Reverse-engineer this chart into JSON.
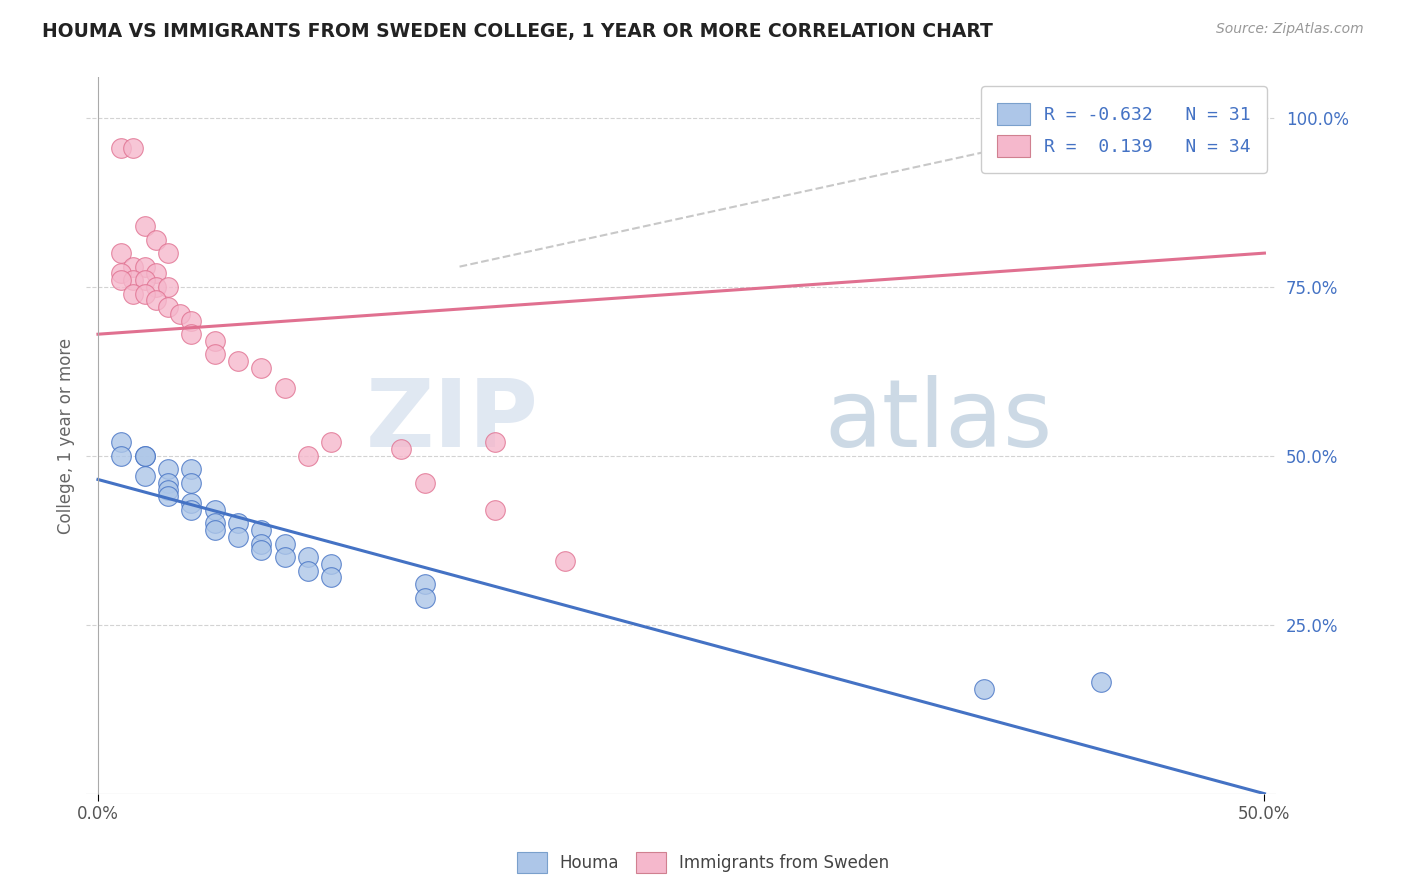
{
  "title": "HOUMA VS IMMIGRANTS FROM SWEDEN COLLEGE, 1 YEAR OR MORE CORRELATION CHART",
  "source": "Source: ZipAtlas.com",
  "ylabel_label": "College, 1 year or more",
  "legend_label1": "Houma",
  "legend_label2": "Immigrants from Sweden",
  "R1": -0.632,
  "N1": 31,
  "R2": 0.139,
  "N2": 34,
  "color_blue": "#adc6e8",
  "color_pink": "#f5b8cc",
  "line_blue": "#4472c4",
  "line_pink": "#e07090",
  "line_dashed": "#c8c8c8",
  "watermark_zip": "ZIP",
  "watermark_atlas": "atlas",
  "blue_points": [
    [
      0.01,
      0.52
    ],
    [
      0.01,
      0.5
    ],
    [
      0.02,
      0.5
    ],
    [
      0.02,
      0.47
    ],
    [
      0.02,
      0.5
    ],
    [
      0.03,
      0.48
    ],
    [
      0.03,
      0.46
    ],
    [
      0.03,
      0.45
    ],
    [
      0.03,
      0.44
    ],
    [
      0.04,
      0.48
    ],
    [
      0.04,
      0.46
    ],
    [
      0.04,
      0.43
    ],
    [
      0.04,
      0.42
    ],
    [
      0.05,
      0.42
    ],
    [
      0.05,
      0.4
    ],
    [
      0.05,
      0.39
    ],
    [
      0.06,
      0.4
    ],
    [
      0.06,
      0.38
    ],
    [
      0.07,
      0.39
    ],
    [
      0.07,
      0.37
    ],
    [
      0.07,
      0.36
    ],
    [
      0.08,
      0.37
    ],
    [
      0.08,
      0.35
    ],
    [
      0.09,
      0.35
    ],
    [
      0.09,
      0.33
    ],
    [
      0.1,
      0.34
    ],
    [
      0.1,
      0.32
    ],
    [
      0.14,
      0.31
    ],
    [
      0.14,
      0.29
    ],
    [
      0.38,
      0.155
    ],
    [
      0.43,
      0.165
    ]
  ],
  "pink_points": [
    [
      0.01,
      0.955
    ],
    [
      0.015,
      0.955
    ],
    [
      0.02,
      0.84
    ],
    [
      0.025,
      0.82
    ],
    [
      0.03,
      0.8
    ],
    [
      0.01,
      0.8
    ],
    [
      0.015,
      0.78
    ],
    [
      0.02,
      0.78
    ],
    [
      0.025,
      0.77
    ],
    [
      0.01,
      0.77
    ],
    [
      0.015,
      0.76
    ],
    [
      0.02,
      0.76
    ],
    [
      0.025,
      0.75
    ],
    [
      0.03,
      0.75
    ],
    [
      0.01,
      0.76
    ],
    [
      0.015,
      0.74
    ],
    [
      0.02,
      0.74
    ],
    [
      0.025,
      0.73
    ],
    [
      0.03,
      0.72
    ],
    [
      0.035,
      0.71
    ],
    [
      0.04,
      0.7
    ],
    [
      0.04,
      0.68
    ],
    [
      0.05,
      0.67
    ],
    [
      0.05,
      0.65
    ],
    [
      0.06,
      0.64
    ],
    [
      0.07,
      0.63
    ],
    [
      0.08,
      0.6
    ],
    [
      0.09,
      0.5
    ],
    [
      0.1,
      0.52
    ],
    [
      0.13,
      0.51
    ],
    [
      0.14,
      0.46
    ],
    [
      0.17,
      0.52
    ],
    [
      0.17,
      0.42
    ],
    [
      0.2,
      0.345
    ]
  ],
  "blue_line_x": [
    0.0,
    0.5
  ],
  "blue_line_y": [
    0.465,
    0.0
  ],
  "pink_line_x": [
    0.0,
    0.5
  ],
  "pink_line_y": [
    0.68,
    0.8
  ],
  "dashed_line_x": [
    0.155,
    0.5
  ],
  "dashed_line_y": [
    0.78,
    1.04
  ],
  "xlim": [
    -0.005,
    0.505
  ],
  "ylim": [
    0.0,
    1.06
  ],
  "xtick_positions": [
    0.0,
    0.5
  ],
  "xtick_labels": [
    "0.0%",
    "50.0%"
  ],
  "ytick_right_positions": [
    0.25,
    0.5,
    0.75,
    1.0
  ],
  "ytick_right_labels": [
    "25.0%",
    "50.0%",
    "75.0%",
    "100.0%"
  ],
  "background_color": "#ffffff",
  "grid_color": "#d3d3d3"
}
